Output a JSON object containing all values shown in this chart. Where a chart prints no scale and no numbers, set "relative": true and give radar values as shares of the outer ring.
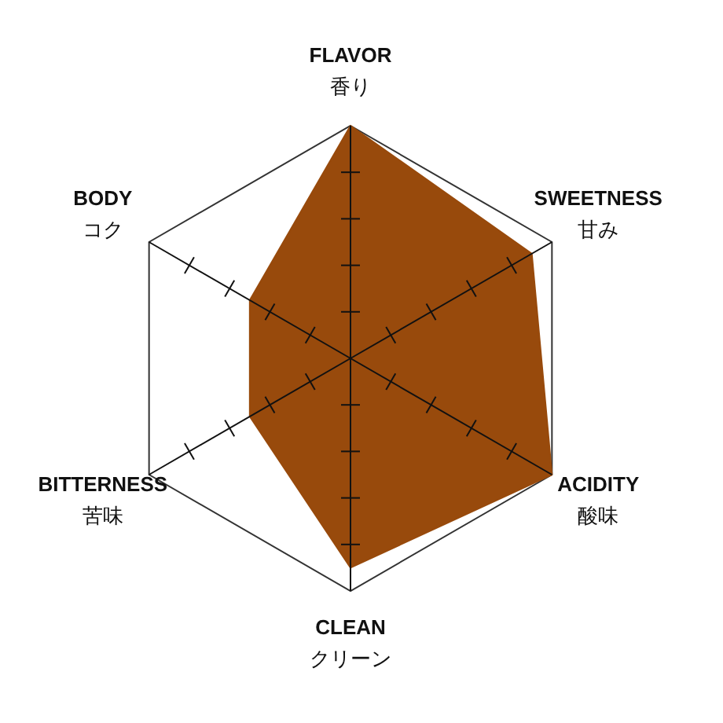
{
  "chart_data": {
    "type": "radar",
    "relative": true,
    "categories": [
      "FLAVOR\n香り",
      "SWEETNESS\n甘み",
      "ACIDITY\n酸味",
      "CLEAN\nクリーン",
      "BITTERNESS\n苦味",
      "BODY\nコク"
    ],
    "series": [
      {
        "color": "#984a0c",
        "values": [
          1,
          0.9,
          1,
          0.9,
          0.5,
          0.5
        ]
      }
    ]
  }
}
